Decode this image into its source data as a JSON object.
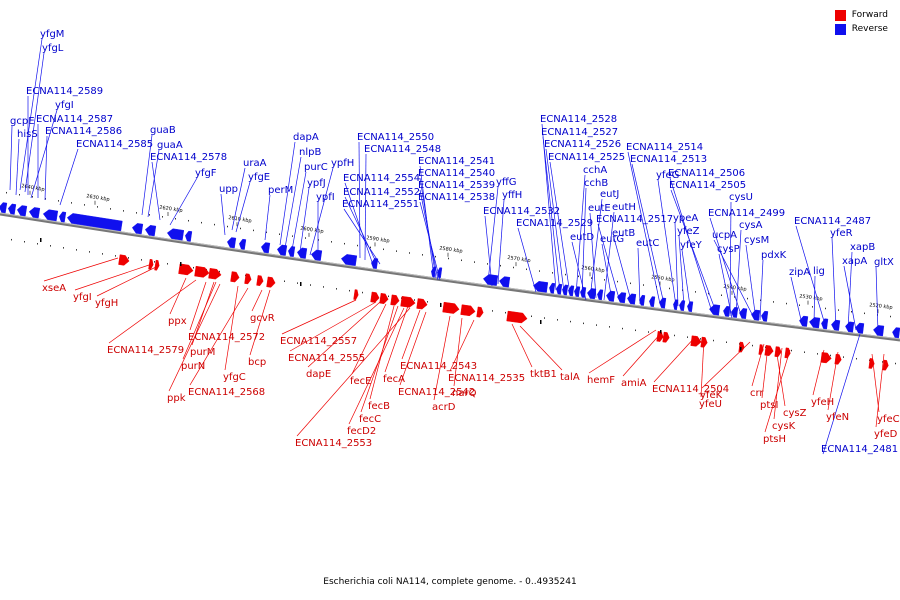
{
  "legend": {
    "forward": {
      "label": "Forward",
      "color": "#ee0000"
    },
    "reverse": {
      "label": "Reverse",
      "color": "#1010ee"
    }
  },
  "caption": "Escherichia coli NA114, complete genome. - 0..4935241",
  "ticks": [
    "2640 kbp",
    "2630 kbp",
    "2620 kbp",
    "2610 kbp",
    "2600 kbp",
    "2590 kbp",
    "2580 kbp",
    "2570 kbp",
    "2560 kbp",
    "2550 kbp",
    "2540 kbp",
    "2530 kbp",
    "2520 kbp"
  ],
  "reverse_labels": [
    "yfgM",
    "yfgL",
    "ECNA114_2589",
    "yfgI",
    "gcpE",
    "ECNA114_2587",
    "hisS",
    "ECNA114_2586",
    "ECNA114_2585",
    "guaB",
    "guaA",
    "ECNA114_2578",
    "yfgF",
    "uraA",
    "yfgE",
    "upp",
    "perM",
    "dapA",
    "nlpB",
    "purC",
    "ypfJ",
    "ypfH",
    "ypfI",
    "ECNA114_2550",
    "ECNA114_2548",
    "ECNA114_2554",
    "ECNA114_2552",
    "ECNA114_2551",
    "ECNA114_2541",
    "ECNA114_2540",
    "ECNA114_2539",
    "ECNA114_2538",
    "yffG",
    "yffH",
    "ECNA114_2532",
    "ECNA114_2529",
    "ECNA114_2528",
    "ECNA114_2527",
    "ECNA114_2526",
    "ECNA114_2525",
    "cchA",
    "cchB",
    "eutJ",
    "eutE",
    "eutH",
    "eutD",
    "eutG",
    "ECNA114_2517",
    "eutB",
    "eutC",
    "ECNA114_2514",
    "ECNA114_2513",
    "yfeG",
    "ypeA",
    "yfeZ",
    "yfeY",
    "ECNA114_2506",
    "ECNA114_2505",
    "cysU",
    "cysA",
    "ECNA114_2499",
    "ucpA",
    "cysM",
    "cysP",
    "pdxK",
    "zipA",
    "lig",
    "ECNA114_2487",
    "yfeR",
    "xapB",
    "xapA",
    "gltX",
    "ECNA114_2481"
  ],
  "forward_labels": [
    "xseA",
    "yfgI",
    "yfgH",
    "ppx",
    "ECNA114_2579",
    "ECNA114_2572",
    "purM",
    "purN",
    "ppk",
    "yfgC",
    "ECNA114_2568",
    "gcvR",
    "bcp",
    "ECNA114_2557",
    "ECNA114_2555",
    "dapE",
    "fecE",
    "fecB",
    "fecC",
    "fecD2",
    "ECNA114_2553",
    "fecA",
    "ECNA114_2543",
    "ECNA114_2542",
    "acrD",
    "narQ",
    "ECNA114_2535",
    "tktB1",
    "talA",
    "hemF",
    "amiA",
    "ECNA114_2504",
    "yfeU",
    "yfeK",
    "crr",
    "ptsI",
    "cysZ",
    "cysK",
    "ptsH",
    "yfeH",
    "yfeN",
    "yfeC",
    "yfeD"
  ]
}
